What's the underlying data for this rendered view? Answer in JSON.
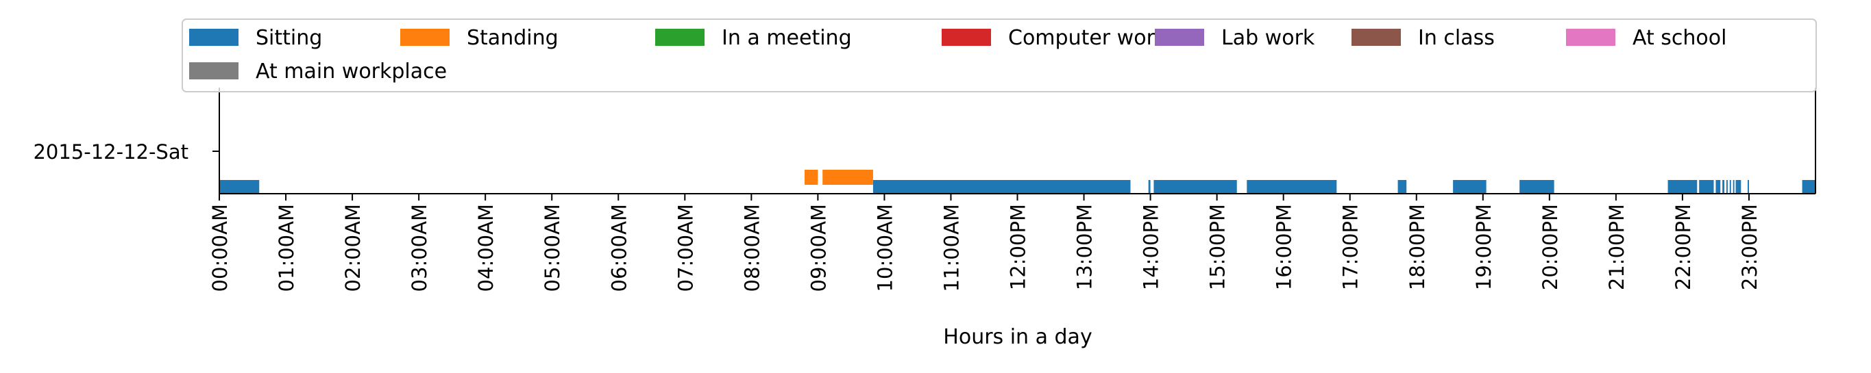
{
  "chart_data": {
    "type": "timeline",
    "row_label": "2015-12-12-Sat",
    "xlabel": "Hours in a day",
    "xlim": [
      0,
      24
    ],
    "tick_labels": [
      "00:00AM",
      "01:00AM",
      "02:00AM",
      "03:00AM",
      "04:00AM",
      "05:00AM",
      "06:00AM",
      "07:00AM",
      "08:00AM",
      "09:00AM",
      "10:00AM",
      "11:00AM",
      "12:00PM",
      "13:00PM",
      "14:00PM",
      "15:00PM",
      "16:00PM",
      "17:00PM",
      "18:00PM",
      "19:00PM",
      "20:00PM",
      "21:00PM",
      "22:00PM",
      "23:00PM"
    ],
    "legend_placement": "top, above plot, 7 columns",
    "series": [
      {
        "name": "Sitting",
        "color": "#1f77b4",
        "intervals": [
          [
            0.0,
            0.6
          ],
          [
            9.83,
            13.7
          ],
          [
            13.97,
            14.0
          ],
          [
            14.05,
            15.3
          ],
          [
            15.45,
            16.8
          ],
          [
            17.72,
            17.85
          ],
          [
            18.55,
            19.05
          ],
          [
            19.55,
            20.07
          ],
          [
            21.78,
            22.22
          ],
          [
            22.25,
            22.47
          ],
          [
            22.5,
            22.57
          ],
          [
            22.6,
            22.63
          ],
          [
            22.66,
            22.68
          ],
          [
            22.71,
            22.73
          ],
          [
            22.76,
            22.78
          ],
          [
            22.8,
            22.88
          ],
          [
            22.98,
            23.0
          ],
          [
            23.8,
            24.0
          ]
        ]
      },
      {
        "name": "Standing",
        "color": "#ff7f0e",
        "intervals": [
          [
            8.8,
            9.0
          ],
          [
            9.07,
            9.83
          ]
        ]
      },
      {
        "name": "In a meeting",
        "color": "#2ca02c",
        "intervals": []
      },
      {
        "name": "Computer work",
        "color": "#d62728",
        "intervals": []
      },
      {
        "name": "Lab work",
        "color": "#9467bd",
        "intervals": []
      },
      {
        "name": "In class",
        "color": "#8c564b",
        "intervals": []
      },
      {
        "name": "At school",
        "color": "#e377c2",
        "intervals": []
      },
      {
        "name": "At main workplace",
        "color": "#7f7f7f",
        "intervals": []
      }
    ]
  }
}
